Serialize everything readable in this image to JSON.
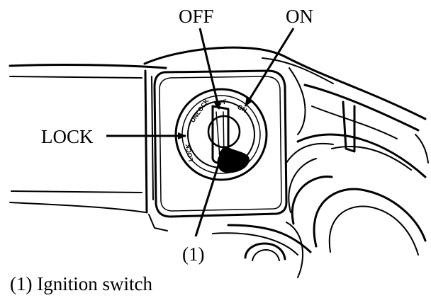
{
  "labels": {
    "off": "OFF",
    "on": "ON",
    "lock": "LOCK",
    "callout": "(1)"
  },
  "stamped_positions": {
    "lock": "LOCK",
    "unlock": "UNLOCK",
    "off": "OFF",
    "on": "ON"
  },
  "caption": "(1) Ignition switch",
  "colors": {
    "ink": "#000000",
    "paper": "#ffffff"
  }
}
